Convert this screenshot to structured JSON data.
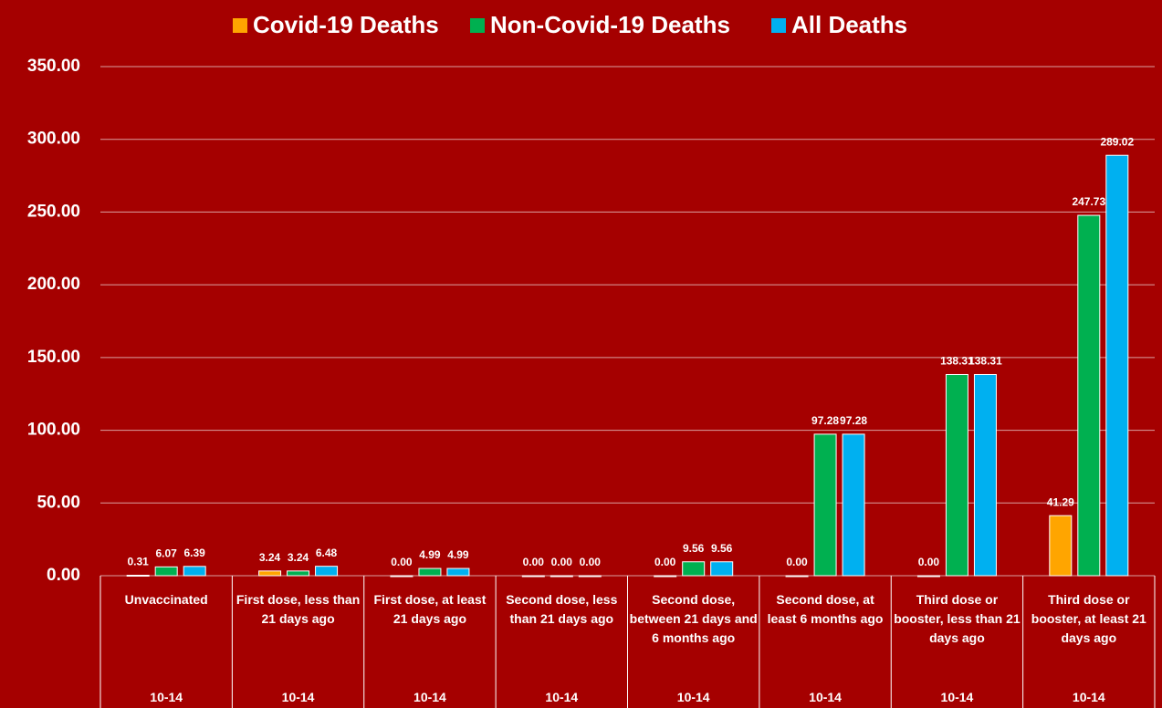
{
  "chart_data": {
    "type": "bar",
    "categories": [
      "Unvaccinated",
      "First dose, less than 21 days ago",
      "First dose, at least 21 days ago",
      "Second dose, less than 21 days ago",
      "Second dose, between 21 days and 6 months ago",
      "Second dose, at least 6 months ago",
      "Third dose or booster, less than 21 days ago",
      "Third dose or booster, at least 21 days ago"
    ],
    "subcategories": [
      "10-14",
      "10-14",
      "10-14",
      "10-14",
      "10-14",
      "10-14",
      "10-14",
      "10-14"
    ],
    "series": [
      {
        "name": "Covid-19 Deaths",
        "color": "#ffa500",
        "values": [
          0.31,
          3.24,
          0,
          0,
          0,
          0,
          0,
          41.29
        ],
        "value_labels": [
          "0.31",
          "3.24",
          "0.00",
          "0.00",
          "0.00",
          "0.00",
          "0.00",
          "41.29"
        ]
      },
      {
        "name": "Non-Covid-19 Deaths",
        "color": "#00b050",
        "values": [
          6.07,
          3.24,
          4.99,
          0,
          9.56,
          97.28,
          138.31,
          247.73
        ],
        "value_labels": [
          "6.07",
          "3.24",
          "4.99",
          "0.00",
          "9.56",
          "97.28",
          "138.31",
          "247.73"
        ]
      },
      {
        "name": "All Deaths",
        "color": "#00b0f0",
        "values": [
          6.39,
          6.48,
          4.99,
          0,
          9.56,
          97.28,
          138.31,
          289.02
        ],
        "value_labels": [
          "6.39",
          "6.48",
          "4.99",
          "0.00",
          "9.56",
          "97.28",
          "138.31",
          "289.02"
        ]
      }
    ],
    "ylim": [
      0,
      350
    ],
    "yticks": [
      {
        "value": 0,
        "label": "0.00"
      },
      {
        "value": 50,
        "label": "50.00"
      },
      {
        "value": 100,
        "label": "100.00"
      },
      {
        "value": 150,
        "label": "150.00"
      },
      {
        "value": 200,
        "label": "200.00"
      },
      {
        "value": 250,
        "label": "250.00"
      },
      {
        "value": 300,
        "label": "300.00"
      },
      {
        "value": 350,
        "label": "350.00"
      }
    ],
    "grid": true,
    "legend": "top"
  }
}
